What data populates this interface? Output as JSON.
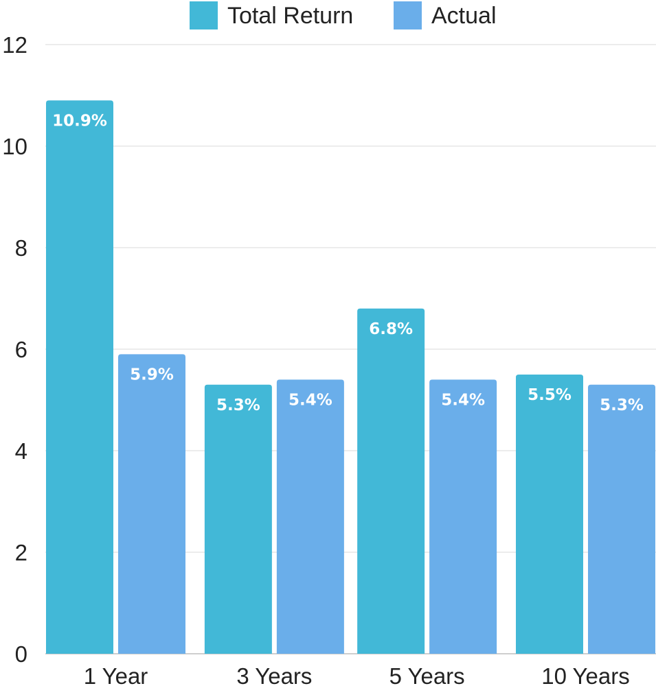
{
  "chart_data": {
    "type": "bar",
    "categories": [
      "1 Year",
      "3 Years",
      "5 Years",
      "10 Years"
    ],
    "series": [
      {
        "name": "Total Return",
        "color": "#42b8d7",
        "values": [
          10.9,
          5.3,
          6.8,
          5.5
        ],
        "labels": [
          "10.9%",
          "5.3%",
          "6.8%",
          "5.5%"
        ]
      },
      {
        "name": "Actual",
        "color": "#6aaeea",
        "values": [
          5.9,
          5.4,
          5.4,
          5.3
        ],
        "labels": [
          "5.9%",
          "5.4%",
          "5.4%",
          "5.3%"
        ]
      }
    ],
    "ylim": [
      0,
      12
    ],
    "yticks": [
      "0",
      "2",
      "4",
      "6",
      "8",
      "10",
      "12"
    ],
    "grid": true,
    "legend_position": "top-center"
  }
}
